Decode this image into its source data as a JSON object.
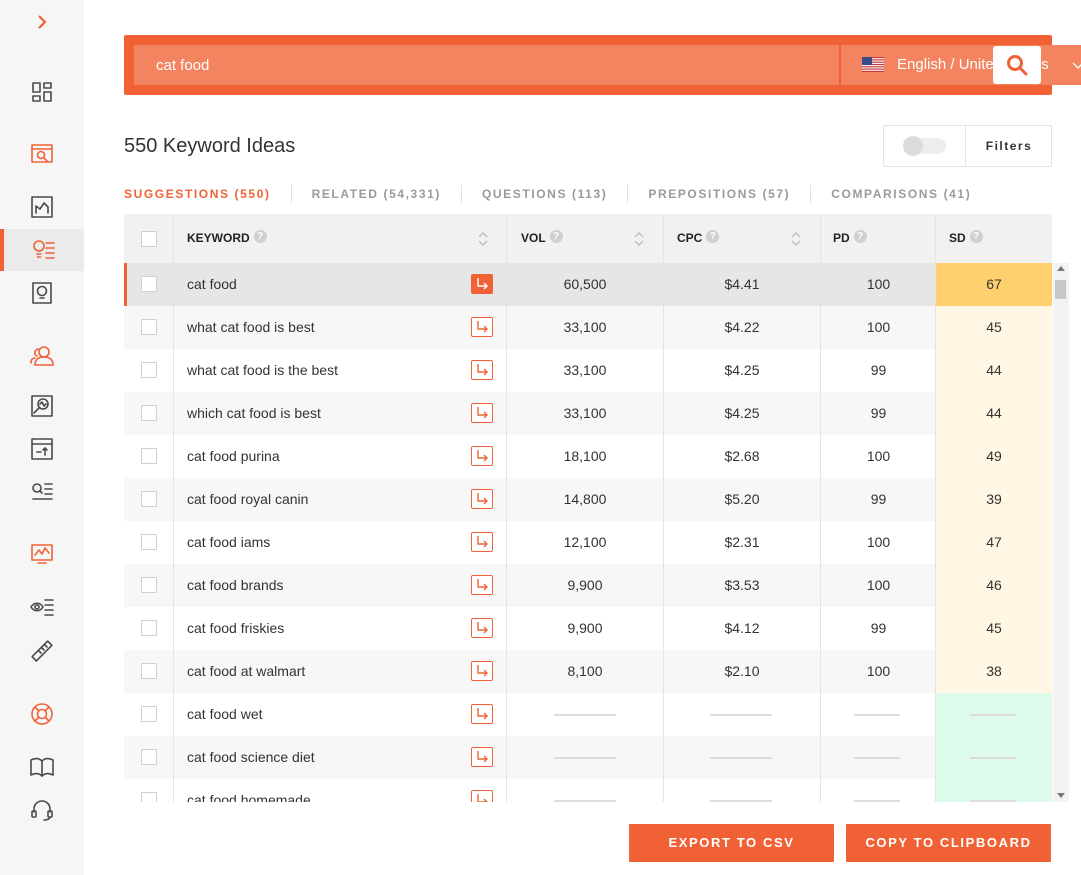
{
  "sidebar": {
    "items": [
      {
        "icon": "dashboard-icon"
      },
      {
        "icon": "site-audit-icon"
      },
      {
        "icon": "traffic-analyzer-icon"
      },
      {
        "icon": "keyword-ideas-icon"
      },
      {
        "icon": "content-ideas-icon"
      },
      {
        "icon": "users-icon"
      },
      {
        "icon": "backlinks-icon"
      },
      {
        "icon": "rank-tracker-icon"
      },
      {
        "icon": "list-search-icon"
      },
      {
        "icon": "chart-monitor-icon"
      },
      {
        "icon": "eye-list-icon"
      },
      {
        "icon": "ruler-icon"
      },
      {
        "icon": "lifebuoy-icon"
      },
      {
        "icon": "book-icon"
      },
      {
        "icon": "headset-icon"
      }
    ]
  },
  "search": {
    "value": "cat food",
    "language": "English / United States"
  },
  "header": {
    "title": "550 Keyword Ideas",
    "filters_label": "Filters"
  },
  "tabs": [
    {
      "label": "SUGGESTIONS (550)"
    },
    {
      "label": "RELATED (54,331)"
    },
    {
      "label": "QUESTIONS (113)"
    },
    {
      "label": "PREPOSITIONS (57)"
    },
    {
      "label": "COMPARISONS (41)"
    }
  ],
  "table": {
    "columns": {
      "keyword": "KEYWORD",
      "vol": "VOL",
      "cpc": "CPC",
      "pd": "PD",
      "sd": "SD"
    },
    "rows": [
      {
        "keyword": "cat food",
        "vol": "60,500",
        "cpc": "$4.41",
        "pd": "100",
        "sd": "67"
      },
      {
        "keyword": "what cat food is best",
        "vol": "33,100",
        "cpc": "$4.22",
        "pd": "100",
        "sd": "45"
      },
      {
        "keyword": "what cat food is the best",
        "vol": "33,100",
        "cpc": "$4.25",
        "pd": "99",
        "sd": "44"
      },
      {
        "keyword": "which cat food is best",
        "vol": "33,100",
        "cpc": "$4.25",
        "pd": "99",
        "sd": "44"
      },
      {
        "keyword": "cat food purina",
        "vol": "18,100",
        "cpc": "$2.68",
        "pd": "100",
        "sd": "49"
      },
      {
        "keyword": "cat food royal canin",
        "vol": "14,800",
        "cpc": "$5.20",
        "pd": "99",
        "sd": "39"
      },
      {
        "keyword": "cat food iams",
        "vol": "12,100",
        "cpc": "$2.31",
        "pd": "100",
        "sd": "47"
      },
      {
        "keyword": "cat food brands",
        "vol": "9,900",
        "cpc": "$3.53",
        "pd": "100",
        "sd": "46"
      },
      {
        "keyword": "cat food friskies",
        "vol": "9,900",
        "cpc": "$4.12",
        "pd": "99",
        "sd": "45"
      },
      {
        "keyword": "cat food at walmart",
        "vol": "8,100",
        "cpc": "$2.10",
        "pd": "100",
        "sd": "38"
      },
      {
        "keyword": "cat food wet",
        "vol": "",
        "cpc": "",
        "pd": "",
        "sd": ""
      },
      {
        "keyword": "cat food science diet",
        "vol": "",
        "cpc": "",
        "pd": "",
        "sd": ""
      },
      {
        "keyword": "cat food homemade",
        "vol": "",
        "cpc": "",
        "pd": "",
        "sd": ""
      }
    ]
  },
  "actions": {
    "export": "EXPORT TO CSV",
    "copy": "COPY TO CLIPBOARD"
  },
  "colors": {
    "accent": "#f06236",
    "sd_high": "#ffd16e",
    "sd_medium": "#fff6e3",
    "sd_unknown": "#dcfbea"
  }
}
